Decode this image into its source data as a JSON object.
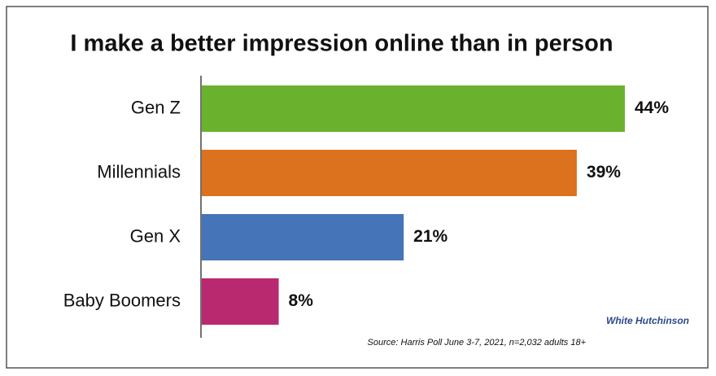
{
  "chart_data": {
    "type": "hbar",
    "title": "I make a better impression online than in person",
    "categories": [
      "Gen Z",
      "Millennials",
      "Gen X",
      "Baby Boomers"
    ],
    "values": [
      44,
      39,
      21,
      8
    ],
    "value_labels": [
      "44%",
      "39%",
      "21%",
      "8%"
    ],
    "colors": [
      "#6ab22e",
      "#dc721d",
      "#4575b8",
      "#b8296f"
    ],
    "source": "Source: Harris Poll June 3-7, 2021, n=2,032 adults 18+",
    "logo": "White Hutchinson"
  }
}
